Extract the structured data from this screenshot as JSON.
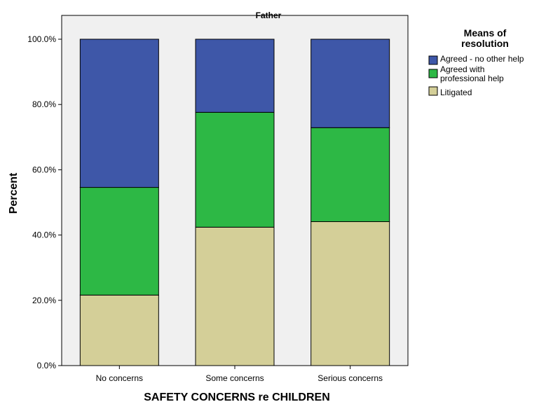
{
  "chart_data": {
    "type": "bar",
    "stacked": true,
    "title": "Father",
    "xlabel": "SAFETY CONCERNS re CHILDREN",
    "ylabel": "Percent",
    "ylim": [
      0,
      100
    ],
    "yticks": [
      "0.0%",
      "20.0%",
      "40.0%",
      "60.0%",
      "80.0%",
      "100.0%"
    ],
    "categories": [
      "No concerns",
      "Some concerns",
      "Serious concerns"
    ],
    "legend": {
      "title_lines": [
        "Means of",
        "resolution"
      ],
      "placement": "right"
    },
    "series": [
      {
        "name": "Litigated",
        "color": "#D4CF98",
        "values": [
          21.6,
          42.4,
          44.1
        ]
      },
      {
        "name": "Agreed with professional help",
        "name_lines": [
          "Agreed with",
          "professional help"
        ],
        "color": "#2DB845",
        "values": [
          33.0,
          35.2,
          28.8
        ]
      },
      {
        "name": "Agreed - no other help",
        "color": "#3E57A8",
        "values": [
          45.4,
          22.4,
          27.1
        ]
      }
    ],
    "legend_order": [
      2,
      1,
      0
    ],
    "colors": {
      "plot_bg": "#F0F0F0",
      "outline": "#000000"
    }
  }
}
